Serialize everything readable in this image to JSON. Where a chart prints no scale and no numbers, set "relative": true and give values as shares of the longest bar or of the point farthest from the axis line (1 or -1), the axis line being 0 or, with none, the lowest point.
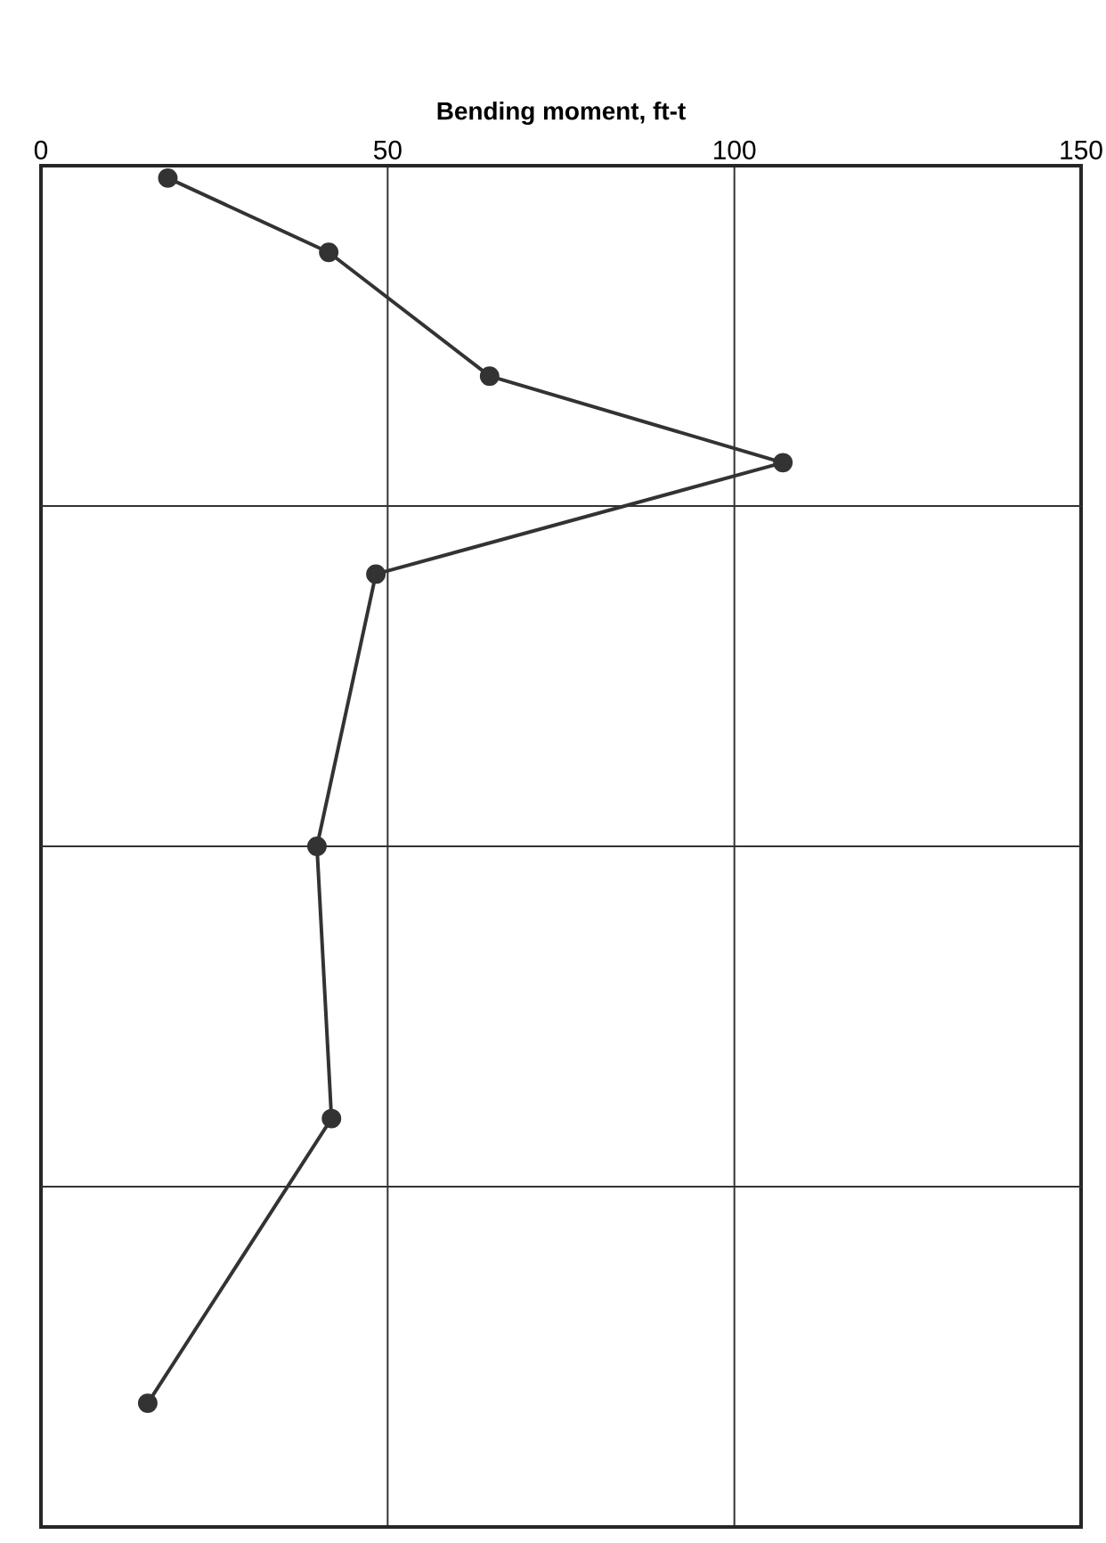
{
  "chart_data": {
    "type": "line",
    "xlabel": "Bending moment, ft-t",
    "x": [
      18.3,
      41.5,
      64.7,
      107,
      48.3,
      39.8,
      41.9,
      15.4
    ],
    "series": [
      {
        "color": "#333333",
        "values": [
          -0.01,
          -0.07,
          -0.17,
          -0.24,
          -0.33,
          -0.55,
          -0.77,
          -1
        ]
      }
    ],
    "relative": true,
    "xlim": [
      0,
      150
    ],
    "xticks": [
      0,
      50,
      100,
      150
    ],
    "tick_labels": "x",
    "grid": true,
    "marker": "circle",
    "line_style": "solid"
  }
}
